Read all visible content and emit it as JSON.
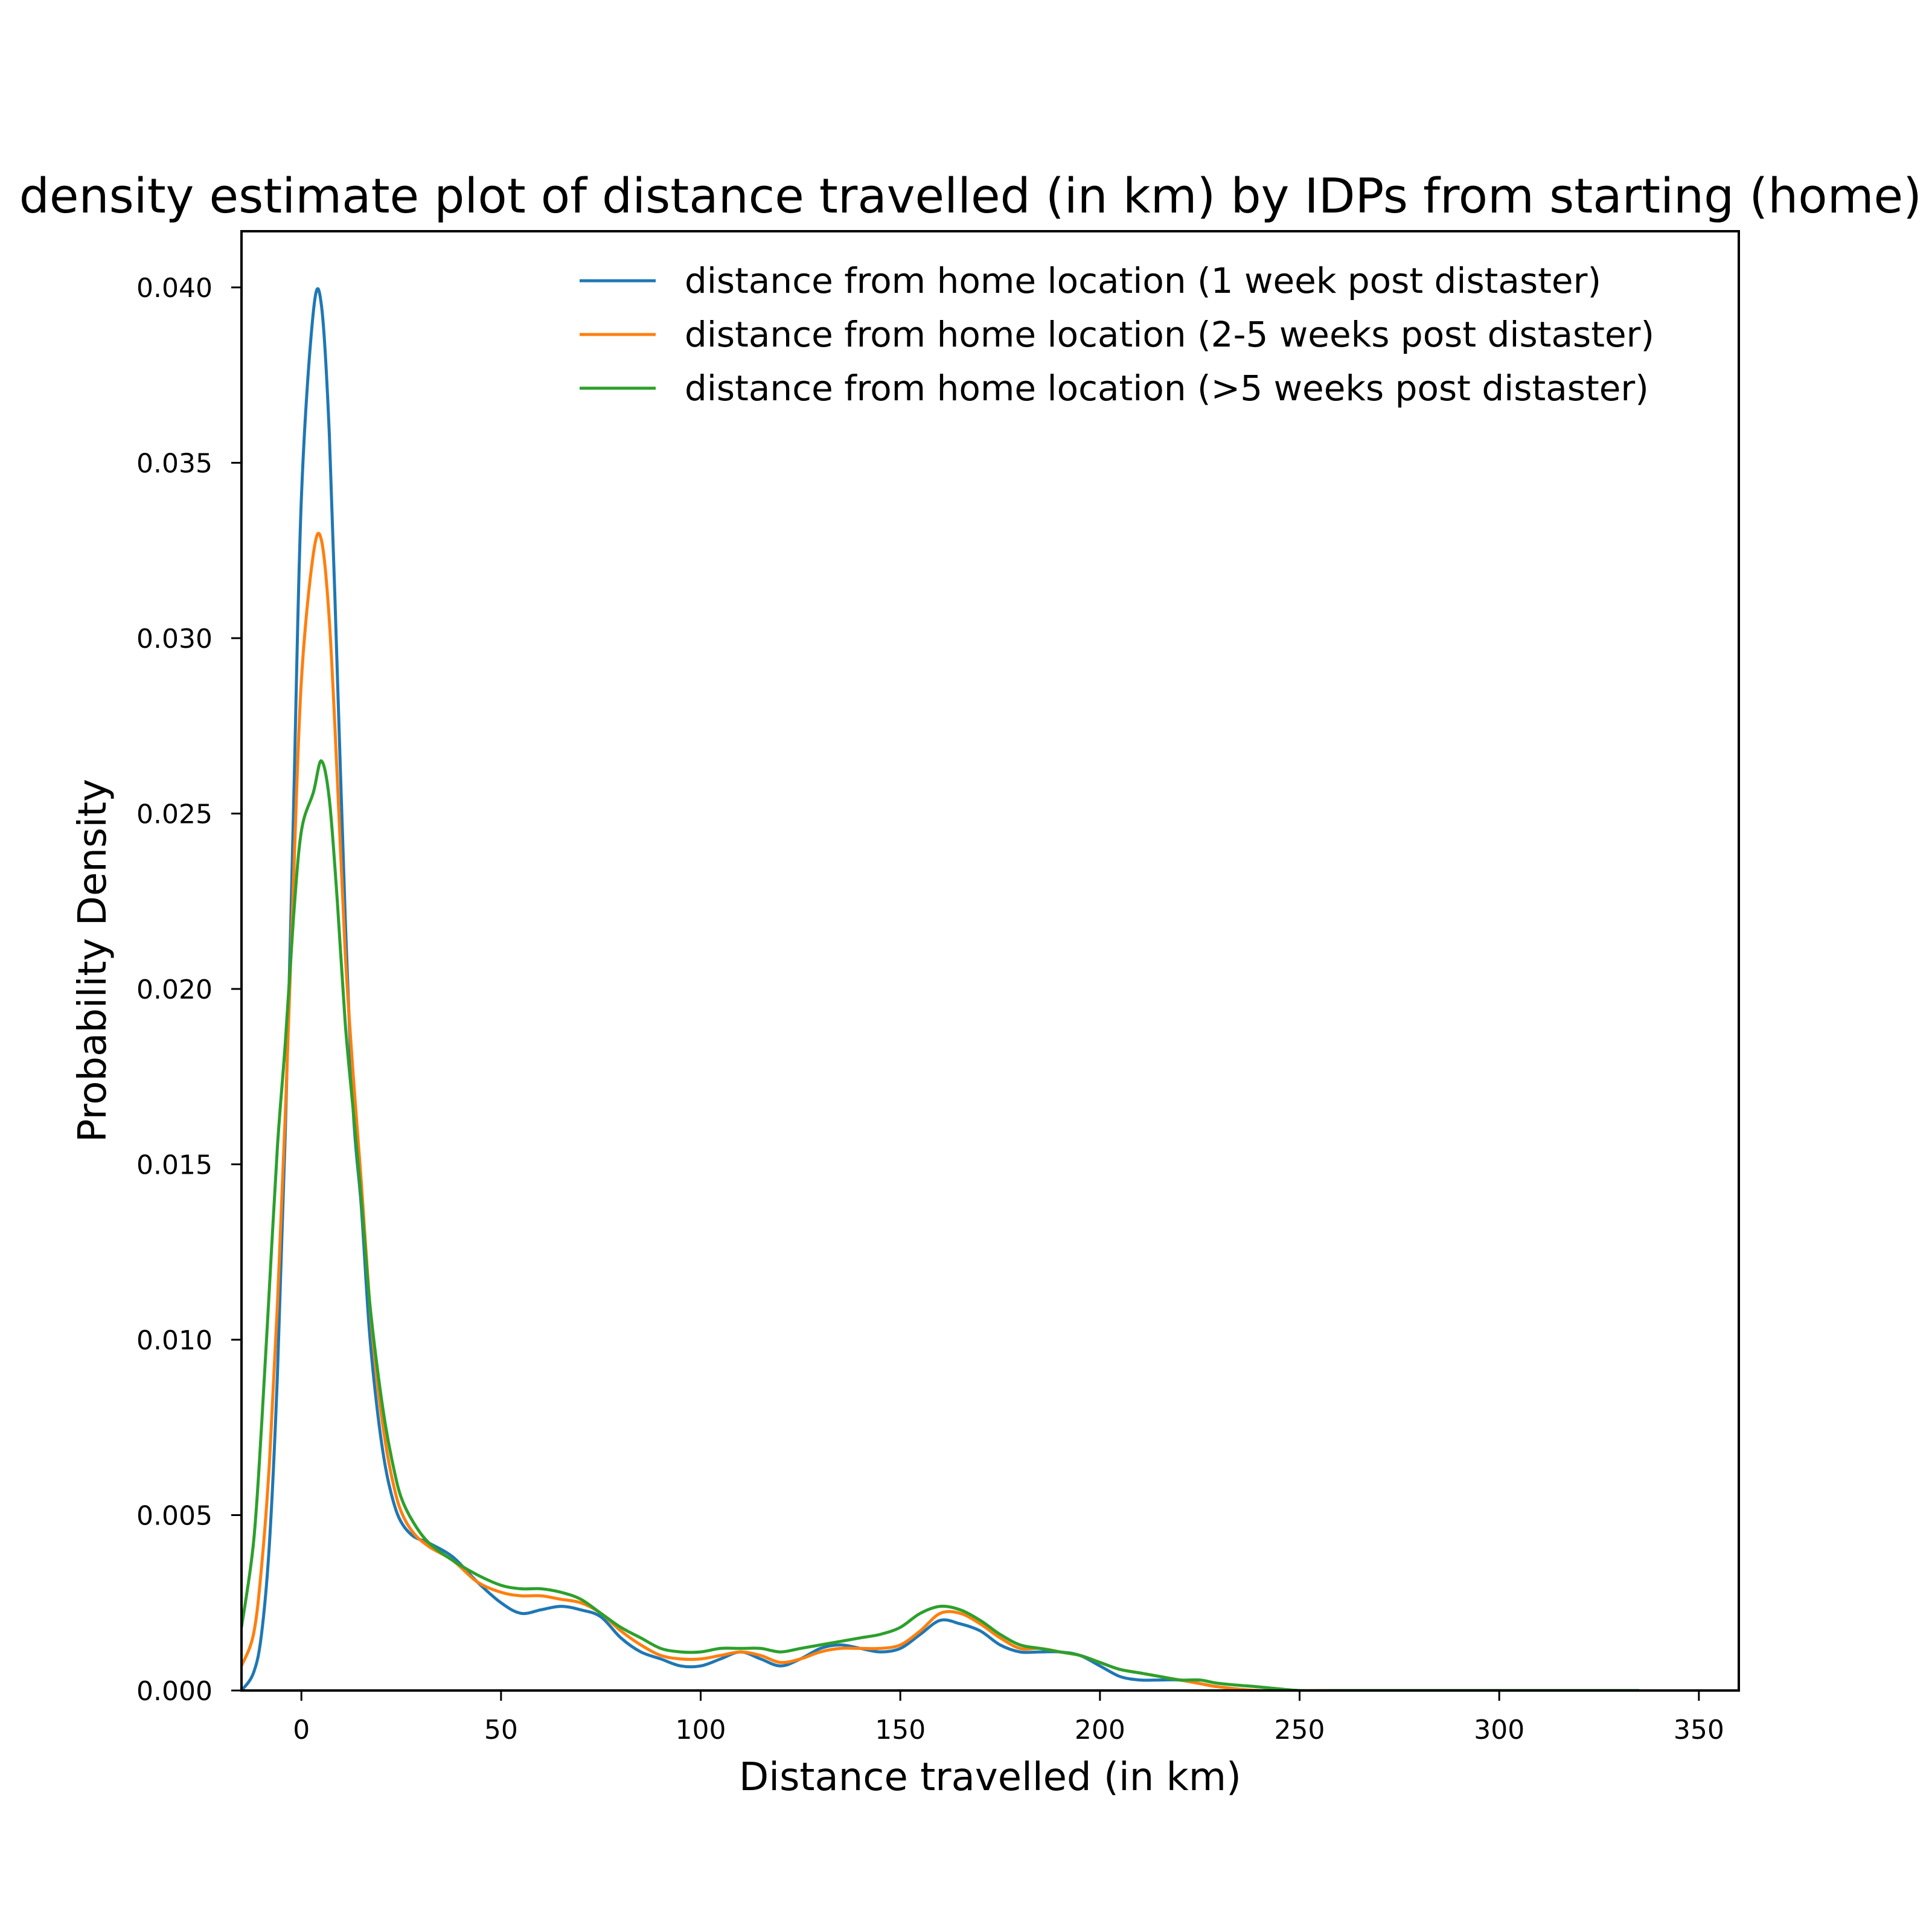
{
  "chart_data": {
    "type": "line",
    "title": "Kernel density estimate plot of distance travelled (in km) by IDPs from starting (home) location",
    "xlabel": "Distance travelled (in km)",
    "ylabel": "Probability Density",
    "xlim": [
      -15,
      360
    ],
    "ylim": [
      0,
      0.0416
    ],
    "x_ticks": [
      0,
      50,
      100,
      150,
      200,
      250,
      300,
      350
    ],
    "x_tick_labels": [
      "0",
      "50",
      "100",
      "150",
      "200",
      "250",
      "300",
      "350"
    ],
    "y_ticks": [
      0,
      0.005,
      0.01,
      0.015,
      0.02,
      0.025,
      0.03,
      0.035,
      0.04
    ],
    "y_tick_labels": [
      "0.000",
      "0.005",
      "0.010",
      "0.015",
      "0.020",
      "0.025",
      "0.030",
      "0.035",
      "0.040"
    ],
    "grid": false,
    "legend_position": "top-right",
    "series": [
      {
        "name": "distance from home location (1 week post distaster)",
        "color": "#1f77b4",
        "points": [
          [
            -15,
            0.0
          ],
          [
            -12,
            0.0005
          ],
          [
            -10,
            0.0016
          ],
          [
            -8,
            0.0042
          ],
          [
            -6,
            0.009
          ],
          [
            -4,
            0.016
          ],
          [
            -2,
            0.025
          ],
          [
            0,
            0.034
          ],
          [
            3,
            0.0393
          ],
          [
            5,
            0.0395
          ],
          [
            7,
            0.0358
          ],
          [
            9,
            0.029
          ],
          [
            11,
            0.022
          ],
          [
            13,
            0.0165
          ],
          [
            15,
            0.0138
          ],
          [
            17,
            0.0103
          ],
          [
            19,
            0.008
          ],
          [
            21,
            0.0064
          ],
          [
            23,
            0.0054
          ],
          [
            25,
            0.0048
          ],
          [
            28,
            0.0044
          ],
          [
            32,
            0.0042
          ],
          [
            38,
            0.0038
          ],
          [
            44,
            0.0031
          ],
          [
            50,
            0.0025
          ],
          [
            55,
            0.0022
          ],
          [
            60,
            0.0023
          ],
          [
            65,
            0.0024
          ],
          [
            70,
            0.0023
          ],
          [
            75,
            0.0021
          ],
          [
            80,
            0.0015
          ],
          [
            85,
            0.0011
          ],
          [
            90,
            0.0009
          ],
          [
            95,
            0.0007
          ],
          [
            100,
            0.0007
          ],
          [
            105,
            0.0009
          ],
          [
            110,
            0.0011
          ],
          [
            115,
            0.0009
          ],
          [
            120,
            0.0007
          ],
          [
            125,
            0.0009
          ],
          [
            130,
            0.0012
          ],
          [
            135,
            0.0013
          ],
          [
            140,
            0.0012
          ],
          [
            145,
            0.0011
          ],
          [
            150,
            0.0012
          ],
          [
            155,
            0.0016
          ],
          [
            160,
            0.002
          ],
          [
            165,
            0.0019
          ],
          [
            170,
            0.0017
          ],
          [
            175,
            0.0013
          ],
          [
            180,
            0.0011
          ],
          [
            185,
            0.0011
          ],
          [
            190,
            0.0011
          ],
          [
            195,
            0.001
          ],
          [
            200,
            0.0007
          ],
          [
            205,
            0.0004
          ],
          [
            210,
            0.0003
          ],
          [
            215,
            0.0003
          ],
          [
            220,
            0.0003
          ],
          [
            225,
            0.0002
          ],
          [
            230,
            0.0001
          ],
          [
            240,
            0.0
          ],
          [
            260,
            0.0
          ],
          [
            300,
            0.0
          ],
          [
            335,
            0.0
          ]
        ]
      },
      {
        "name": "distance from home location (2-5 weeks post distaster)",
        "color": "#ff7f0e",
        "points": [
          [
            -15,
            0.0007
          ],
          [
            -12,
            0.0016
          ],
          [
            -10,
            0.0035
          ],
          [
            -8,
            0.0065
          ],
          [
            -6,
            0.011
          ],
          [
            -4,
            0.0165
          ],
          [
            -2,
            0.023
          ],
          [
            0,
            0.0288
          ],
          [
            3,
            0.0324
          ],
          [
            5,
            0.0328
          ],
          [
            7,
            0.0305
          ],
          [
            9,
            0.026
          ],
          [
            11,
            0.021
          ],
          [
            13,
            0.0175
          ],
          [
            15,
            0.0145
          ],
          [
            17,
            0.0112
          ],
          [
            19,
            0.0088
          ],
          [
            21,
            0.0071
          ],
          [
            23,
            0.0059
          ],
          [
            25,
            0.0051
          ],
          [
            28,
            0.0045
          ],
          [
            32,
            0.0041
          ],
          [
            38,
            0.0037
          ],
          [
            44,
            0.0031
          ],
          [
            50,
            0.0028
          ],
          [
            55,
            0.0027
          ],
          [
            60,
            0.0027
          ],
          [
            65,
            0.0026
          ],
          [
            70,
            0.0025
          ],
          [
            75,
            0.0022
          ],
          [
            80,
            0.0017
          ],
          [
            85,
            0.0013
          ],
          [
            90,
            0.001
          ],
          [
            95,
            0.0009
          ],
          [
            100,
            0.0009
          ],
          [
            105,
            0.001
          ],
          [
            110,
            0.0011
          ],
          [
            115,
            0.001
          ],
          [
            120,
            0.0008
          ],
          [
            125,
            0.0009
          ],
          [
            130,
            0.0011
          ],
          [
            135,
            0.0012
          ],
          [
            140,
            0.0012
          ],
          [
            145,
            0.0012
          ],
          [
            150,
            0.0013
          ],
          [
            155,
            0.0017
          ],
          [
            160,
            0.0022
          ],
          [
            165,
            0.0022
          ],
          [
            170,
            0.0019
          ],
          [
            175,
            0.0015
          ],
          [
            180,
            0.0012
          ],
          [
            185,
            0.0012
          ],
          [
            190,
            0.0011
          ],
          [
            195,
            0.001
          ],
          [
            200,
            0.0008
          ],
          [
            205,
            0.0006
          ],
          [
            210,
            0.0005
          ],
          [
            215,
            0.0004
          ],
          [
            220,
            0.0003
          ],
          [
            225,
            0.0002
          ],
          [
            230,
            0.0001
          ],
          [
            240,
            0.0
          ],
          [
            260,
            0.0
          ],
          [
            281,
            0.0
          ],
          [
            300,
            0.0
          ],
          [
            335,
            0.0
          ]
        ]
      },
      {
        "name": "distance from home location (>5 weeks post distaster)",
        "color": "#2ca02c",
        "points": [
          [
            -15,
            0.0018
          ],
          [
            -12,
            0.0042
          ],
          [
            -10,
            0.0075
          ],
          [
            -8,
            0.0115
          ],
          [
            -6,
            0.0155
          ],
          [
            -4,
            0.0185
          ],
          [
            -2,
            0.022
          ],
          [
            0,
            0.0245
          ],
          [
            3,
            0.0256
          ],
          [
            5,
            0.0265
          ],
          [
            7,
            0.0254
          ],
          [
            9,
            0.0225
          ],
          [
            11,
            0.019
          ],
          [
            13,
            0.0165
          ],
          [
            15,
            0.014
          ],
          [
            17,
            0.0112
          ],
          [
            19,
            0.0092
          ],
          [
            21,
            0.0076
          ],
          [
            23,
            0.0064
          ],
          [
            25,
            0.0055
          ],
          [
            28,
            0.0048
          ],
          [
            32,
            0.0042
          ],
          [
            38,
            0.0037
          ],
          [
            44,
            0.0033
          ],
          [
            50,
            0.003
          ],
          [
            55,
            0.0029
          ],
          [
            60,
            0.0029
          ],
          [
            65,
            0.0028
          ],
          [
            70,
            0.0026
          ],
          [
            75,
            0.0022
          ],
          [
            80,
            0.0018
          ],
          [
            85,
            0.0015
          ],
          [
            90,
            0.0012
          ],
          [
            95,
            0.0011
          ],
          [
            100,
            0.0011
          ],
          [
            105,
            0.0012
          ],
          [
            110,
            0.0012
          ],
          [
            115,
            0.0012
          ],
          [
            120,
            0.0011
          ],
          [
            125,
            0.0012
          ],
          [
            130,
            0.0013
          ],
          [
            135,
            0.0014
          ],
          [
            140,
            0.0015
          ],
          [
            145,
            0.0016
          ],
          [
            150,
            0.0018
          ],
          [
            155,
            0.0022
          ],
          [
            160,
            0.0024
          ],
          [
            165,
            0.0023
          ],
          [
            170,
            0.002
          ],
          [
            175,
            0.0016
          ],
          [
            180,
            0.0013
          ],
          [
            185,
            0.0012
          ],
          [
            190,
            0.0011
          ],
          [
            195,
            0.001
          ],
          [
            200,
            0.0008
          ],
          [
            205,
            0.0006
          ],
          [
            210,
            0.0005
          ],
          [
            215,
            0.0004
          ],
          [
            220,
            0.0003
          ],
          [
            225,
            0.0003
          ],
          [
            230,
            0.0002
          ],
          [
            240,
            0.0001
          ],
          [
            250,
            0.0
          ],
          [
            260,
            0.0
          ],
          [
            300,
            0.0
          ],
          [
            335,
            0.0
          ]
        ]
      }
    ]
  }
}
